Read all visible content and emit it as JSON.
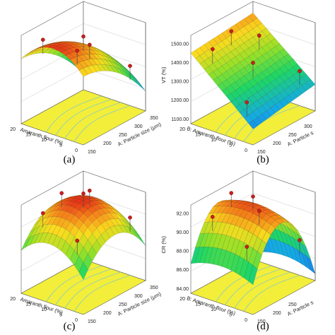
{
  "figure": {
    "panels": [
      "(a)",
      "(b)",
      "(c)",
      "(d)"
    ]
  },
  "colors": {
    "floor": "#f2ee3a",
    "floor_contour": "#7cc7d6",
    "design_point": "#c8201e",
    "frame": "#555555",
    "surface_low": "#1f3fe0",
    "surface_mid": "#1ed760",
    "surface_high": "#e01b1b"
  },
  "chart_data": [
    {
      "type": "surface",
      "panel": "(a)",
      "xlabel": "A: Particle size (µm)",
      "ylabel": "Amaranth flour (%)",
      "zlabel": "",
      "x_ticks": [
        "150",
        "200",
        "250",
        "300",
        "350"
      ],
      "y_ticks": [
        "0",
        "5",
        "10",
        "15",
        "20"
      ],
      "z_ticks": [
        "",
        "",
        "",
        ""
      ],
      "x": [
        150,
        350
      ],
      "y": [
        0,
        20
      ],
      "shape": "dome-decreasing-with-particle-size",
      "design_points": 5
    },
    {
      "type": "surface",
      "panel": "(b)",
      "xlabel": "A: Particle s",
      "ylabel": "B: Amaranth flour (%)",
      "zlabel": "VT (%)",
      "x_ticks": [
        "150",
        "200",
        "250",
        "300"
      ],
      "y_ticks": [
        "0",
        "5",
        "10",
        "15",
        "20"
      ],
      "z_ticks": [
        "1100.00",
        "1200.00",
        "1300.00",
        "1400.00",
        "1500.00"
      ],
      "x": [
        150,
        350
      ],
      "y": [
        0,
        20
      ],
      "zlim": [
        1100,
        1500
      ],
      "shape": "plane-increasing-with-amaranth-flour",
      "design_points": 6
    },
    {
      "type": "surface",
      "panel": "(c)",
      "xlabel": "A: Particle size (µm)",
      "ylabel": "Amaranth flour (%)",
      "zlabel": "",
      "x_ticks": [
        "150",
        "200",
        "250",
        "300",
        "350"
      ],
      "y_ticks": [
        "0",
        "5",
        "10",
        "15",
        "20"
      ],
      "z_ticks": [
        "",
        "",
        "",
        ""
      ],
      "x": [
        150,
        350
      ],
      "y": [
        0,
        20
      ],
      "shape": "dome",
      "design_points": 6
    },
    {
      "type": "surface",
      "panel": "(d)",
      "xlabel": "A: Particle s",
      "ylabel": "B: Amaranth flour (%)",
      "zlabel": "CR (%)",
      "x_ticks": [
        "150",
        "200",
        "250"
      ],
      "y_ticks": [
        "0",
        "5",
        "10",
        "15",
        "20"
      ],
      "z_ticks": [
        "84.00",
        "86.00",
        "88.00",
        "90.00",
        "92.00"
      ],
      "x": [
        150,
        350
      ],
      "y": [
        0,
        20
      ],
      "zlim": [
        84,
        92
      ],
      "shape": "saddle-dome",
      "design_points": 6
    }
  ]
}
